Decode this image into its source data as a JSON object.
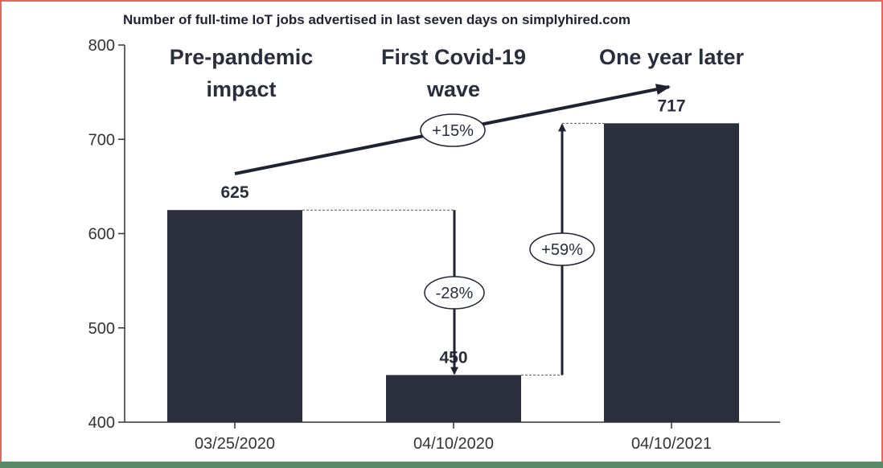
{
  "colors": {
    "bar": "#2a2e3d",
    "axis": "#333333",
    "text": "#2a2d3c",
    "frame": "#e8665a"
  },
  "chart_data": {
    "type": "bar",
    "title": "Number of full-time IoT jobs advertised in last seven days on simplyhired.com",
    "categories": [
      "03/25/2020",
      "04/10/2020",
      "04/10/2021"
    ],
    "values": [
      625,
      450,
      717
    ],
    "value_labels": [
      "625",
      "450",
      "717"
    ],
    "ylim": [
      400,
      800
    ],
    "yticks": [
      400,
      500,
      600,
      700,
      800
    ],
    "xlabel": "",
    "ylabel": "",
    "grid": false,
    "headings": [
      {
        "lines": [
          "Pre-pandemic",
          "impact"
        ]
      },
      {
        "lines": [
          "First Covid-19",
          "wave"
        ]
      },
      {
        "lines": [
          "One year later"
        ]
      }
    ],
    "annotations": [
      {
        "label": "-28%",
        "from_value": 625,
        "to_value": 450,
        "between": [
          0,
          1
        ]
      },
      {
        "label": "+59%",
        "from_value": 450,
        "to_value": 717,
        "between": [
          1,
          2
        ]
      },
      {
        "label": "+15%",
        "trend": [
          625,
          717
        ]
      }
    ]
  }
}
